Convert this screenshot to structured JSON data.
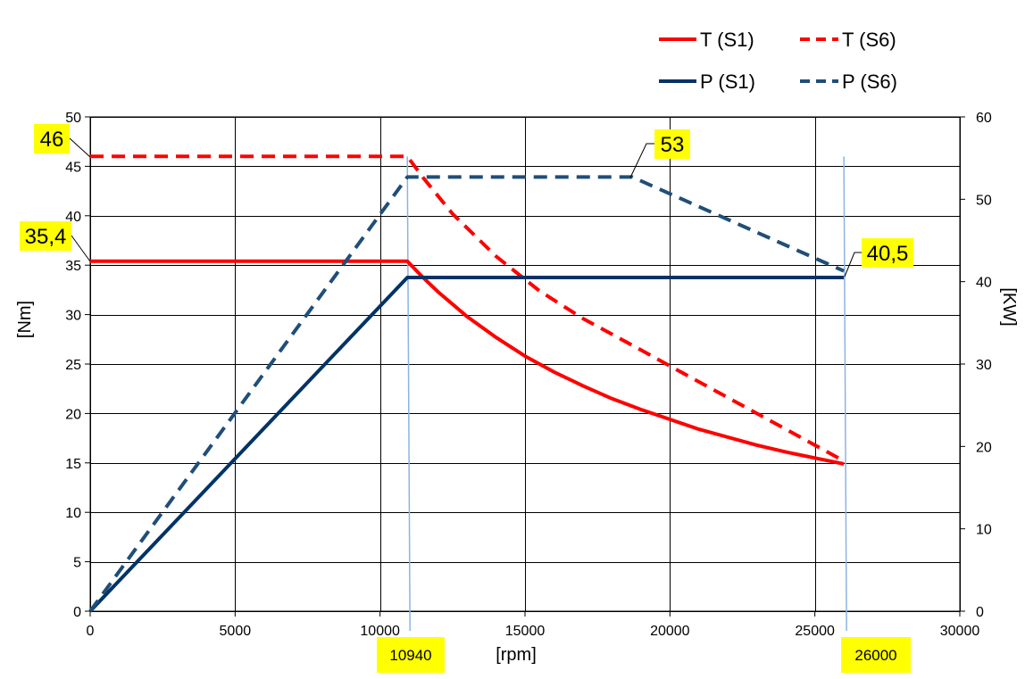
{
  "chart_data": {
    "type": "line",
    "xlabel": "[rpm]",
    "ylabel": "[Nm]",
    "y2label": "[KW]",
    "xlim": [
      0,
      30000
    ],
    "ylim": [
      0,
      50
    ],
    "y2lim": [
      0,
      60
    ],
    "xticks": [
      0,
      5000,
      10000,
      15000,
      20000,
      25000,
      30000
    ],
    "yticks": [
      0,
      5,
      10,
      15,
      20,
      25,
      30,
      35,
      40,
      45,
      50
    ],
    "y2ticks": [
      0,
      10,
      20,
      30,
      40,
      50,
      60
    ],
    "grid": true,
    "legend_position": "top-right",
    "series": [
      {
        "name": "T (S1)",
        "axis": "left",
        "color": "#ff0000",
        "dash": false,
        "x": [
          0,
          10940,
          11500,
          12000,
          13000,
          14000,
          15000,
          16000,
          17000,
          18000,
          19000,
          20000,
          21000,
          22000,
          23000,
          24000,
          25000,
          26000
        ],
        "y": [
          35.4,
          35.4,
          33.7,
          32.3,
          29.8,
          27.7,
          25.8,
          24.2,
          22.8,
          21.5,
          20.4,
          19.4,
          18.4,
          17.6,
          16.8,
          16.1,
          15.5,
          14.9
        ]
      },
      {
        "name": "T (S6)",
        "axis": "left",
        "color": "#ff0000",
        "dash": true,
        "x": [
          0,
          10940,
          11500,
          12500,
          14000,
          15500,
          17000,
          18700,
          20000,
          22000,
          24000,
          26000
        ],
        "y": [
          46,
          46,
          43.8,
          40.2,
          35.9,
          32.4,
          29.6,
          26.9,
          24.8,
          21.6,
          18.4,
          15.2
        ]
      },
      {
        "name": "P (S1)",
        "axis": "right",
        "color": "#003366",
        "dash": false,
        "x": [
          0,
          10940,
          26000
        ],
        "y": [
          0,
          40.5,
          40.5
        ]
      },
      {
        "name": "P (S6)",
        "axis": "right",
        "color": "#1f4e79",
        "dash": true,
        "x": [
          0,
          10940,
          18700,
          26000
        ],
        "y": [
          0,
          52.7,
          52.7,
          41.3
        ]
      }
    ],
    "annotations": [
      {
        "text": "46",
        "x": 0,
        "y": 46,
        "axis": "left"
      },
      {
        "text": "35,4",
        "x": 0,
        "y": 35.4,
        "axis": "left"
      },
      {
        "text": "53",
        "x": 18700,
        "y": 52.7,
        "axis": "right"
      },
      {
        "text": "40,5",
        "x": 26000,
        "y": 41.3,
        "axis": "right"
      }
    ],
    "x_markers": [
      {
        "text": "10940",
        "x": 10940
      },
      {
        "text": "26000",
        "x": 26000
      }
    ]
  },
  "colors": {
    "highlight": "#ffff00",
    "marker_line": "#8db3e2",
    "grid": "#000000"
  }
}
